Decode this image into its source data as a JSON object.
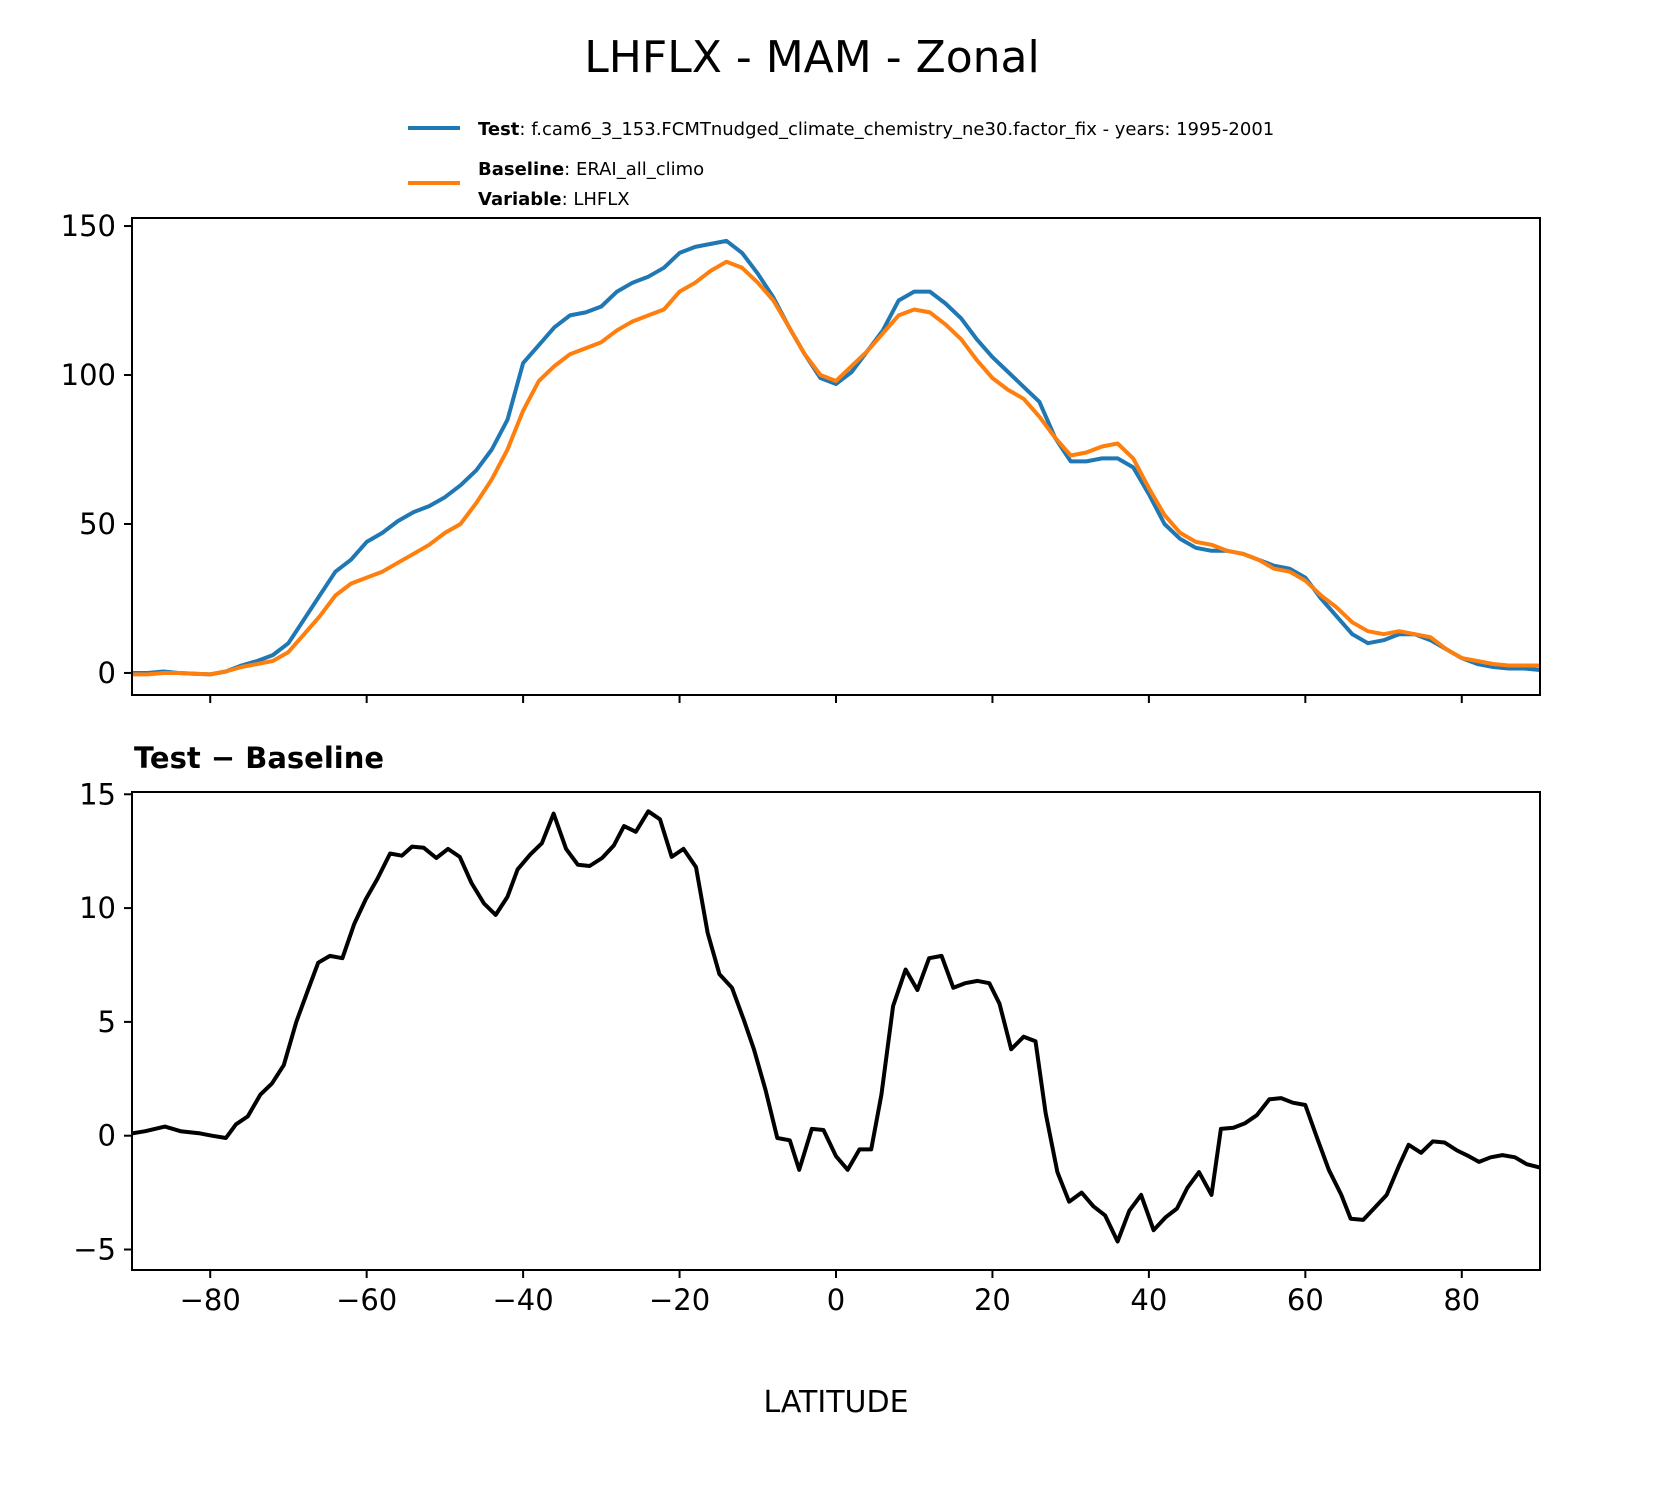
{
  "title": "LHFLX - MAM - Zonal",
  "legend": {
    "test_key": "Test",
    "test_value": ": f.cam6_3_153.FCMTnudged_climate_chemistry_ne30.factor_fix - years: 1995-2001",
    "baseline_key": "Baseline",
    "baseline_value": ": ERAI_all_climo",
    "variable_key": "Variable",
    "variable_value": ": LHFLX"
  },
  "colors": {
    "test": "#1f77b4",
    "baseline": "#ff7f0e",
    "diff": "#000000"
  },
  "chart_data": [
    {
      "type": "line",
      "title": "",
      "xlabel": "",
      "ylabel": "",
      "xlim": [
        -90,
        90
      ],
      "ylim": [
        -7.4,
        152.7
      ],
      "yticks": [
        0,
        50,
        100,
        150
      ],
      "ytick_labels": [
        "0",
        "50",
        "100",
        "150"
      ],
      "xticks": [
        -80,
        -60,
        -40,
        -20,
        0,
        20,
        40,
        60,
        80
      ],
      "grid": false,
      "legend_placement": "above",
      "x": [
        -90,
        -88,
        -86,
        -84,
        -82,
        -80,
        -78,
        -76,
        -74,
        -72,
        -70,
        -68,
        -66,
        -64,
        -62,
        -60,
        -58,
        -56,
        -54,
        -52,
        -50,
        -48,
        -46,
        -44,
        -42,
        -40,
        -38,
        -36,
        -34,
        -32,
        -30,
        -28,
        -26,
        -24,
        -22,
        -20,
        -18,
        -16,
        -14,
        -12,
        -10,
        -8,
        -6,
        -4,
        -2,
        0,
        2,
        4,
        6,
        8,
        10,
        12,
        14,
        16,
        18,
        20,
        22,
        24,
        26,
        28,
        30,
        32,
        34,
        36,
        38,
        40,
        42,
        44,
        46,
        48,
        50,
        52,
        54,
        56,
        58,
        60,
        62,
        64,
        66,
        68,
        70,
        72,
        74,
        76,
        78,
        80,
        82,
        84,
        86,
        88,
        90
      ],
      "series": [
        {
          "name": "Test",
          "color_key": "test",
          "values": [
            0,
            0,
            0.5,
            0,
            -0.3,
            -0.5,
            0.5,
            2.5,
            4,
            6,
            10,
            18,
            26,
            34,
            38,
            44,
            47,
            51,
            54,
            56,
            59,
            63,
            68,
            75,
            85,
            104,
            110,
            116,
            120,
            121,
            123,
            128,
            131,
            133,
            136,
            141,
            143,
            144,
            145,
            141,
            134,
            126,
            116,
            107,
            99,
            97,
            101,
            108,
            115,
            125,
            128,
            128,
            124,
            119,
            112,
            106,
            101,
            96,
            91,
            79,
            71,
            71,
            72,
            72,
            69,
            60,
            50,
            45,
            42,
            41,
            41,
            40,
            38,
            36,
            35,
            32,
            25,
            19,
            13,
            10,
            11,
            13,
            13,
            11,
            8,
            5,
            3,
            2,
            1.5,
            1.5,
            1
          ]
        },
        {
          "name": "Baseline",
          "color_key": "baseline",
          "values": [
            -0.5,
            -0.5,
            0,
            0,
            -0.3,
            -0.5,
            0.5,
            2,
            3,
            4,
            7,
            13,
            19,
            26,
            30,
            32,
            34,
            37,
            40,
            43,
            47,
            50,
            57,
            65,
            75,
            88,
            98,
            103,
            107,
            109,
            111,
            115,
            118,
            120,
            122,
            128,
            131,
            135,
            138,
            136,
            131,
            125,
            116,
            107,
            100,
            98,
            103,
            108,
            114,
            120,
            122,
            121,
            117,
            112,
            105,
            99,
            95,
            92,
            86,
            79,
            73,
            74,
            76,
            77,
            72,
            62,
            53,
            47,
            44,
            43,
            41,
            40,
            38,
            35,
            34,
            31,
            26,
            22,
            17,
            14,
            13,
            14,
            13,
            12,
            8,
            5,
            4,
            3,
            2.5,
            2.5,
            2.5
          ]
        }
      ]
    },
    {
      "type": "line",
      "title": "Test − Baseline",
      "xlabel": "LATITUDE",
      "ylabel": "",
      "xlim": [
        -90,
        90
      ],
      "ylim": [
        -5.9,
        15.1
      ],
      "yticks": [
        -5,
        0,
        5,
        10,
        15
      ],
      "ytick_labels": [
        "−5",
        "0",
        "5",
        "10",
        "15"
      ],
      "xticks": [
        -80,
        -60,
        -40,
        -20,
        0,
        20,
        40,
        60,
        80
      ],
      "xtick_labels": [
        "−80",
        "−60",
        "−40",
        "−20",
        "0",
        "20",
        "40",
        "60",
        "80"
      ],
      "grid": false,
      "x": [
        -90,
        -88.3,
        -85.8,
        -83.8,
        -81.3,
        -79.8,
        -78,
        -76.7,
        -75.2,
        -73.6,
        -72.1,
        -70.6,
        -69,
        -67.5,
        -66.2,
        -64.7,
        -63.1,
        -61.6,
        -60.1,
        -58.6,
        -57,
        -55.5,
        -54.2,
        -52.7,
        -51.1,
        -49.6,
        -48.1,
        -46.6,
        -45,
        -43.5,
        -42,
        -40.7,
        -39.1,
        -37.6,
        -36.1,
        -34.5,
        -33,
        -31.5,
        -29.9,
        -28.4,
        -27.1,
        -25.6,
        -24,
        -22.5,
        -21,
        -19.5,
        -17.9,
        -16.4,
        -14.9,
        -13.3,
        -11.8,
        -10.5,
        -9,
        -7.5,
        -5.9,
        -4.7,
        -3.1,
        -1.6,
        0,
        1.5,
        3,
        4.5,
        5.8,
        7.3,
        8.9,
        10.4,
        11.9,
        13.5,
        15,
        16.5,
        18.1,
        19.6,
        20.9,
        22.4,
        24,
        25.5,
        26.8,
        28.3,
        29.8,
        31.4,
        32.9,
        34.4,
        36,
        37.5,
        39,
        40.6,
        42.1,
        43.6,
        44.9,
        46.4,
        48,
        49.2,
        50.8,
        52.3,
        53.8,
        55.4,
        56.9,
        58.4,
        60,
        61.5,
        63,
        64.6,
        65.8,
        67.4,
        68.9,
        70.4,
        72,
        73.2,
        74.8,
        76.3,
        77.8,
        79.4,
        80.9,
        82.2,
        83.7,
        85.2,
        86.8,
        88.3,
        90
      ],
      "series": [
        {
          "name": "Test − Baseline",
          "color_key": "diff",
          "values": [
            0.1,
            0.2,
            0.4,
            0.2,
            0.1,
            0,
            -0.1,
            0.5,
            0.85,
            1.8,
            2.3,
            3.1,
            5,
            6.4,
            7.6,
            7.9,
            7.8,
            9.3,
            10.4,
            11.3,
            12.4,
            12.3,
            12.7,
            12.65,
            12.2,
            12.6,
            12.25,
            11.1,
            10.2,
            9.7,
            10.5,
            11.7,
            12.35,
            12.85,
            14.15,
            12.6,
            11.9,
            11.85,
            12.2,
            12.75,
            13.6,
            13.35,
            14.25,
            13.9,
            12.25,
            12.6,
            11.8,
            8.9,
            7.1,
            6.5,
            5.1,
            3.8,
            2,
            -0.1,
            -0.2,
            -1.5,
            0.3,
            0.25,
            -0.9,
            -1.5,
            -0.6,
            -0.6,
            1.8,
            5.7,
            7.3,
            6.4,
            7.8,
            7.9,
            6.5,
            6.7,
            6.8,
            6.7,
            5.8,
            3.8,
            4.35,
            4.15,
            1,
            -1.6,
            -2.9,
            -2.5,
            -3.1,
            -3.5,
            -4.65,
            -3.3,
            -2.6,
            -4.15,
            -3.6,
            -3.2,
            -2.3,
            -1.6,
            -2.6,
            0.3,
            0.35,
            0.55,
            0.9,
            1.6,
            1.65,
            1.45,
            1.35,
            -0.1,
            -1.5,
            -2.6,
            -3.65,
            -3.7,
            -3.15,
            -2.6,
            -1.3,
            -0.4,
            -0.75,
            -0.25,
            -0.3,
            -0.65,
            -0.9,
            -1.15,
            -0.95,
            -0.85,
            -0.95,
            -1.25,
            -1.4
          ]
        }
      ]
    }
  ]
}
